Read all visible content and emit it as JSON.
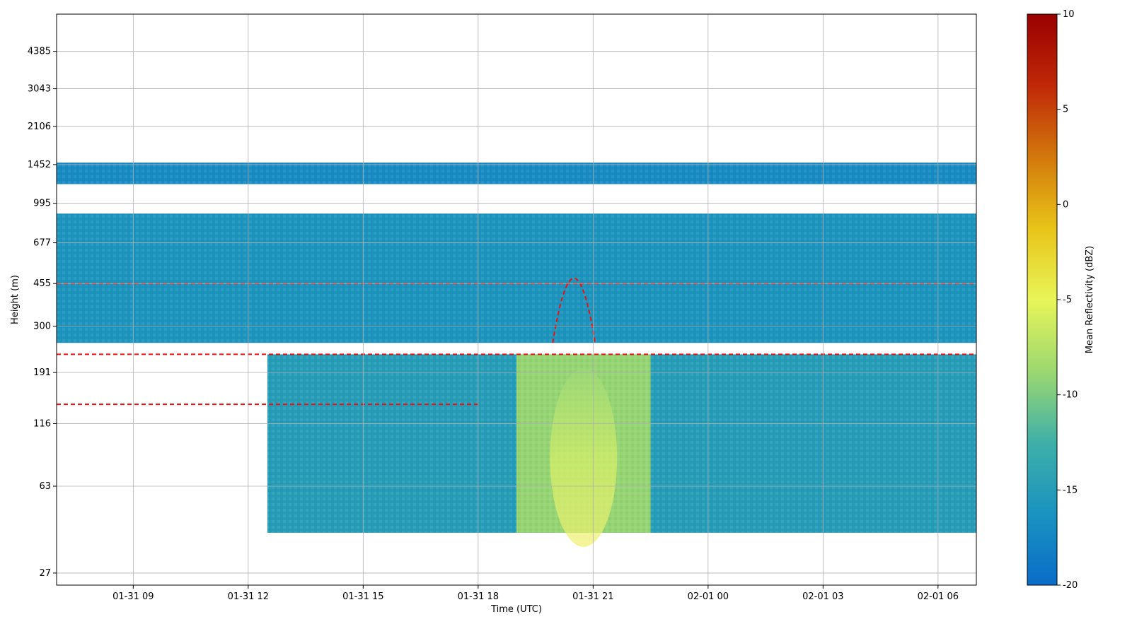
{
  "chart_data": {
    "type": "heatmap",
    "title": "",
    "xlabel": "Time (UTC)",
    "ylabel": "Height (m)",
    "x_ticks": [
      "01-31 09",
      "01-31 12",
      "01-31 15",
      "01-31 18",
      "01-31 21",
      "02-01 00",
      "02-01 03",
      "02-01 06"
    ],
    "x_range": [
      "01-31 07:00",
      "02-01 07:00"
    ],
    "y_ticks": [
      27,
      63,
      116,
      191,
      300,
      455,
      677,
      995,
      1452,
      2106,
      3043,
      4385
    ],
    "y_scale": "log",
    "y_range": [
      24,
      6300
    ],
    "grid": true,
    "colorbar": {
      "label": "Mean Reflectivity (dBZ)",
      "ticks": [
        -20,
        -15,
        -10,
        -5,
        0,
        5,
        10
      ],
      "range": [
        -20,
        10
      ],
      "colors": [
        "#0a6cc8",
        "#1a93c0",
        "#3fb0a8",
        "#9cd870",
        "#e8f558",
        "#e8c418",
        "#d2780c",
        "#c02808",
        "#9a0000"
      ]
    },
    "contour": {
      "color": "#ee1111",
      "style": "dashed"
    },
    "layers": [
      {
        "height_range": [
          255,
          900
        ],
        "time_range": [
          "01-31 07:00",
          "02-01 07:00"
        ],
        "value_dbz": -16
      },
      {
        "height_range": [
          40,
          228
        ],
        "time_range": [
          "01-31 12:30",
          "02-01 07:00"
        ],
        "value_dbz": -15
      },
      {
        "height_range": [
          40,
          228
        ],
        "time_range": [
          "01-31 19:00",
          "01-31 22:30"
        ],
        "value_dbz": -9
      },
      {
        "height_range": [
          1200,
          1480
        ],
        "time_range": [
          "01-31 07:00",
          "02-01 07:00"
        ],
        "value_dbz": -17
      }
    ]
  }
}
